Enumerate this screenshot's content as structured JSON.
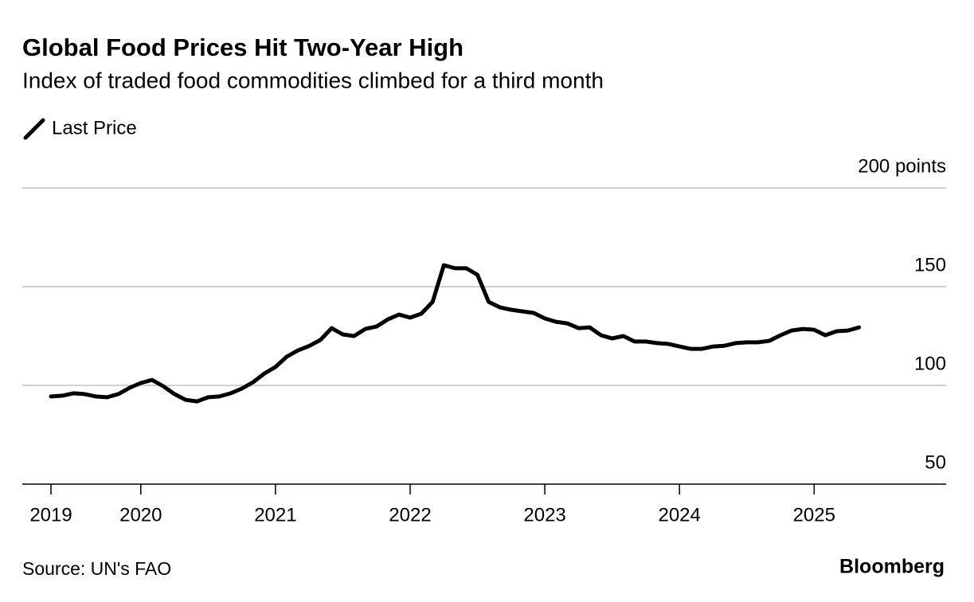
{
  "chart_data": {
    "type": "line",
    "title": "Global Food Prices Hit Two-Year High",
    "subtitle": "Index of traded food commodities climbed for a third month",
    "source": "Source: UN's FAO",
    "brand": "Bloomberg",
    "xlim": [
      2019.12,
      2025.98
    ],
    "xticks": [
      {
        "value": 2019.333,
        "label": "2019"
      },
      2020,
      2021,
      2022,
      2023,
      2024,
      2025
    ],
    "ylim": [
      50,
      200
    ],
    "yticks": [
      50,
      100,
      150,
      {
        "value": 200,
        "label": "200 points"
      }
    ],
    "grid": true,
    "x": [
      2019.333,
      2019.417,
      2019.5,
      2019.583,
      2019.667,
      2019.75,
      2019.833,
      2019.917,
      2020,
      2020.083,
      2020.167,
      2020.25,
      2020.333,
      2020.417,
      2020.5,
      2020.583,
      2020.667,
      2020.75,
      2020.833,
      2020.917,
      2021,
      2021.083,
      2021.167,
      2021.25,
      2021.333,
      2021.417,
      2021.5,
      2021.583,
      2021.667,
      2021.75,
      2021.833,
      2021.917,
      2022,
      2022.083,
      2022.167,
      2022.25,
      2022.333,
      2022.417,
      2022.5,
      2022.583,
      2022.667,
      2022.75,
      2022.833,
      2022.917,
      2023,
      2023.083,
      2023.167,
      2023.25,
      2023.333,
      2023.417,
      2023.5,
      2023.583,
      2023.667,
      2023.75,
      2023.833,
      2023.917,
      2024,
      2024.083,
      2024.167,
      2024.25,
      2024.333,
      2024.417,
      2024.5,
      2024.583,
      2024.667,
      2024.75,
      2024.833,
      2024.917,
      2025,
      2025.083,
      2025.167,
      2025.25,
      2025.333
    ],
    "series": [
      {
        "name": "Last Price",
        "color": "#000000",
        "values": [
          94.4,
          94.8,
          96,
          95.6,
          94.4,
          94,
          95.6,
          98.8,
          101.2,
          102.8,
          99.6,
          95.6,
          92.7,
          91.9,
          94,
          94.4,
          96,
          98.4,
          101.6,
          106,
          109.3,
          114.5,
          117.7,
          120,
          123,
          129,
          125.8,
          125,
          128.6,
          129.8,
          133.4,
          135.9,
          134.3,
          136.3,
          142.3,
          160.9,
          159.3,
          159.3,
          156,
          142.3,
          139.5,
          138.3,
          137.5,
          136.7,
          133.9,
          132.2,
          131.4,
          129,
          129.4,
          125.4,
          123.8,
          125,
          122.2,
          122.2,
          121.4,
          121,
          119.7,
          118.5,
          118.5,
          119.7,
          120.1,
          121.4,
          121.8,
          121.8,
          122.6,
          125.4,
          127.8,
          128.6,
          128.2,
          125.4,
          127.4,
          127.8,
          129.4
        ]
      }
    ]
  }
}
